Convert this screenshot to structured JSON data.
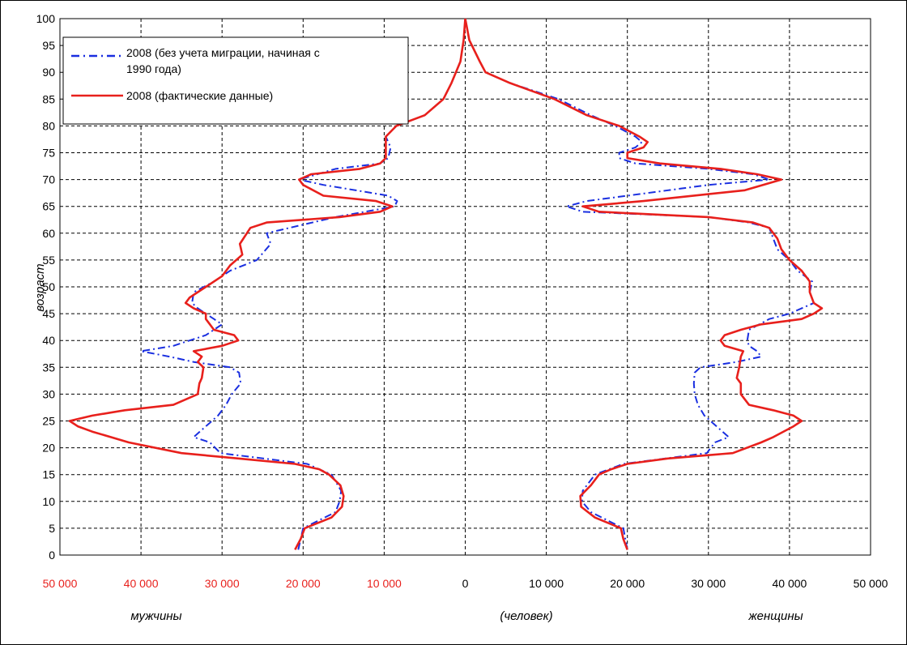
{
  "chart_data": {
    "type": "line",
    "title": "",
    "ylabel": "возраст",
    "xlabel": "(человек)",
    "left_label": "мужчины",
    "right_label": "женщины",
    "xlim": [
      -50000,
      50000
    ],
    "ylim": [
      0,
      100
    ],
    "grid": true,
    "legend_position": "top-left",
    "y_ticks": [
      "0",
      "5",
      "10",
      "15",
      "20",
      "25",
      "30",
      "35",
      "40",
      "45",
      "50",
      "55",
      "60",
      "65",
      "70",
      "75",
      "80",
      "85",
      "90",
      "95",
      "100"
    ],
    "x_ticks": [
      {
        "value": -50000,
        "label": "50 000"
      },
      {
        "value": -40000,
        "label": "40 000"
      },
      {
        "value": -30000,
        "label": "30 000"
      },
      {
        "value": -20000,
        "label": "20 000"
      },
      {
        "value": -10000,
        "label": "10 000"
      },
      {
        "value": 0,
        "label": "0"
      },
      {
        "value": 10000,
        "label": "10 000"
      },
      {
        "value": 20000,
        "label": "20 000"
      },
      {
        "value": 30000,
        "label": "30 000"
      },
      {
        "value": 40000,
        "label": "40 000"
      },
      {
        "value": 50000,
        "label": "50 000"
      }
    ],
    "colors": {
      "negative_ticks": "#e8201c",
      "actual": "#e8201c",
      "projection": "#1a2fe0",
      "grid": "#000000"
    },
    "series": [
      {
        "name": "2008 (без учета миграции, начиная с 1990 года)",
        "style": "dash-dot",
        "color": "#1a2fe0",
        "male": [
          [
            1,
            -20600
          ],
          [
            5,
            -20000
          ],
          [
            8,
            -16000
          ],
          [
            10,
            -15500
          ],
          [
            12,
            -15300
          ],
          [
            15,
            -16500
          ],
          [
            17,
            -19500
          ],
          [
            19,
            -30200
          ],
          [
            21,
            -31500
          ],
          [
            22,
            -33500
          ],
          [
            24,
            -32000
          ],
          [
            26,
            -30500
          ],
          [
            28,
            -29500
          ],
          [
            30,
            -28800
          ],
          [
            32,
            -27700
          ],
          [
            34,
            -27900
          ],
          [
            35,
            -29000
          ],
          [
            36,
            -33500
          ],
          [
            37,
            -36500
          ],
          [
            38,
            -40000
          ],
          [
            39,
            -36000
          ],
          [
            41,
            -32000
          ],
          [
            43,
            -30000
          ],
          [
            44,
            -31000
          ],
          [
            45,
            -32000
          ],
          [
            46,
            -33000
          ],
          [
            47,
            -33700
          ],
          [
            49,
            -33500
          ],
          [
            51,
            -31000
          ],
          [
            53,
            -29000
          ],
          [
            55,
            -25700
          ],
          [
            58,
            -24000
          ],
          [
            60,
            -24500
          ],
          [
            63,
            -16000
          ],
          [
            65,
            -8700
          ],
          [
            66,
            -8400
          ],
          [
            67,
            -9500
          ],
          [
            69,
            -17500
          ],
          [
            70,
            -20500
          ],
          [
            72,
            -16000
          ],
          [
            73,
            -10500
          ],
          [
            74,
            -9500
          ],
          [
            76,
            -9200
          ],
          [
            78,
            -9800
          ],
          [
            80,
            -8500
          ],
          [
            82,
            -5000
          ],
          [
            85,
            -2700
          ],
          [
            88,
            -1700
          ],
          [
            92,
            -600
          ],
          [
            96,
            -200
          ],
          [
            100,
            0
          ]
        ],
        "female": [
          [
            1,
            20000
          ],
          [
            5,
            19500
          ],
          [
            8,
            15500
          ],
          [
            10,
            14400
          ],
          [
            12,
            14500
          ],
          [
            15,
            16000
          ],
          [
            17,
            19500
          ],
          [
            19,
            29800
          ],
          [
            21,
            30800
          ],
          [
            22,
            32500
          ],
          [
            24,
            31000
          ],
          [
            26,
            29500
          ],
          [
            28,
            28700
          ],
          [
            30,
            28300
          ],
          [
            32,
            28200
          ],
          [
            34,
            28300
          ],
          [
            35,
            29000
          ],
          [
            36,
            33500
          ],
          [
            37,
            36500
          ],
          [
            38,
            36000
          ],
          [
            39,
            35000
          ],
          [
            40,
            34800
          ],
          [
            42,
            35000
          ],
          [
            44,
            37500
          ],
          [
            45,
            40000
          ],
          [
            47,
            43000
          ],
          [
            49,
            42500
          ],
          [
            51,
            42800
          ],
          [
            53,
            41000
          ],
          [
            55,
            40000
          ],
          [
            57,
            38500
          ],
          [
            59,
            38000
          ],
          [
            61,
            37500
          ],
          [
            62,
            35000
          ],
          [
            63,
            30000
          ],
          [
            64,
            14500
          ],
          [
            65,
            12500
          ],
          [
            66,
            15000
          ],
          [
            67,
            20000
          ],
          [
            69,
            30000
          ],
          [
            70,
            37500
          ],
          [
            71,
            35500
          ],
          [
            72,
            30000
          ],
          [
            73,
            21000
          ],
          [
            74,
            19000
          ],
          [
            75,
            19000
          ],
          [
            76,
            21000
          ],
          [
            77,
            21800
          ],
          [
            78,
            21000
          ],
          [
            80,
            18500
          ],
          [
            82,
            15500
          ],
          [
            85,
            11500
          ],
          [
            88,
            5500
          ],
          [
            90,
            2500
          ],
          [
            92,
            1800
          ],
          [
            96,
            500
          ],
          [
            100,
            0
          ]
        ]
      },
      {
        "name": "2008 (фактические данные)",
        "style": "solid",
        "color": "#e8201c",
        "male": [
          [
            1,
            -21000
          ],
          [
            3,
            -20300
          ],
          [
            5,
            -19800
          ],
          [
            7,
            -16500
          ],
          [
            9,
            -15200
          ],
          [
            11,
            -15000
          ],
          [
            13,
            -15400
          ],
          [
            15,
            -16800
          ],
          [
            16,
            -18000
          ],
          [
            17,
            -21000
          ],
          [
            18,
            -28000
          ],
          [
            19,
            -35000
          ],
          [
            21,
            -41500
          ],
          [
            23,
            -46000
          ],
          [
            24,
            -47800
          ],
          [
            25,
            -48800
          ],
          [
            26,
            -46000
          ],
          [
            27,
            -42000
          ],
          [
            28,
            -36000
          ],
          [
            30,
            -33000
          ],
          [
            32,
            -32800
          ],
          [
            33,
            -32500
          ],
          [
            35,
            -32300
          ],
          [
            36,
            -33000
          ],
          [
            37,
            -32500
          ],
          [
            38,
            -33500
          ],
          [
            39,
            -30000
          ],
          [
            40,
            -28000
          ],
          [
            41,
            -28500
          ],
          [
            42,
            -31000
          ],
          [
            44,
            -32000
          ],
          [
            45,
            -32000
          ],
          [
            46,
            -33500
          ],
          [
            47,
            -34500
          ],
          [
            48,
            -34000
          ],
          [
            50,
            -32000
          ],
          [
            52,
            -30000
          ],
          [
            54,
            -29000
          ],
          [
            56,
            -27500
          ],
          [
            58,
            -27800
          ],
          [
            61,
            -26500
          ],
          [
            62,
            -24500
          ],
          [
            63,
            -15500
          ],
          [
            64,
            -10500
          ],
          [
            65,
            -9000
          ],
          [
            66,
            -11000
          ],
          [
            67,
            -17500
          ],
          [
            69,
            -20000
          ],
          [
            70,
            -20500
          ],
          [
            71,
            -19000
          ],
          [
            72,
            -13000
          ],
          [
            73,
            -10500
          ],
          [
            74,
            -9800
          ],
          [
            76,
            -9800
          ],
          [
            78,
            -9800
          ],
          [
            80,
            -8500
          ],
          [
            82,
            -5000
          ],
          [
            85,
            -2700
          ],
          [
            88,
            -1700
          ],
          [
            92,
            -600
          ],
          [
            96,
            -200
          ],
          [
            100,
            0
          ]
        ],
        "female": [
          [
            1,
            20000
          ],
          [
            3,
            19500
          ],
          [
            5,
            19200
          ],
          [
            7,
            16000
          ],
          [
            9,
            14300
          ],
          [
            11,
            14200
          ],
          [
            13,
            15500
          ],
          [
            15,
            16500
          ],
          [
            16,
            18000
          ],
          [
            17,
            20000
          ],
          [
            18,
            25000
          ],
          [
            19,
            33000
          ],
          [
            21,
            36500
          ],
          [
            22,
            38000
          ],
          [
            24,
            40500
          ],
          [
            25,
            41500
          ],
          [
            26,
            40500
          ],
          [
            27,
            38000
          ],
          [
            28,
            35000
          ],
          [
            30,
            34000
          ],
          [
            32,
            34000
          ],
          [
            33,
            33500
          ],
          [
            35,
            33800
          ],
          [
            37,
            34000
          ],
          [
            38,
            34300
          ],
          [
            39,
            32000
          ],
          [
            40,
            31500
          ],
          [
            41,
            32000
          ],
          [
            42,
            34000
          ],
          [
            43,
            36500
          ],
          [
            44,
            41500
          ],
          [
            45,
            43000
          ],
          [
            46,
            44000
          ],
          [
            47,
            43000
          ],
          [
            49,
            42500
          ],
          [
            51,
            42500
          ],
          [
            53,
            41500
          ],
          [
            55,
            40000
          ],
          [
            57,
            39000
          ],
          [
            59,
            38500
          ],
          [
            61,
            37500
          ],
          [
            62,
            35500
          ],
          [
            63,
            30000
          ],
          [
            64,
            16500
          ],
          [
            65,
            14500
          ],
          [
            66,
            22000
          ],
          [
            68,
            34500
          ],
          [
            70,
            39000
          ],
          [
            71,
            36000
          ],
          [
            72,
            31500
          ],
          [
            73,
            24000
          ],
          [
            74,
            20000
          ],
          [
            75,
            20000
          ],
          [
            76,
            22000
          ],
          [
            77,
            22500
          ],
          [
            78,
            21500
          ],
          [
            80,
            19000
          ],
          [
            82,
            15000
          ],
          [
            85,
            11000
          ],
          [
            88,
            5500
          ],
          [
            90,
            2500
          ],
          [
            92,
            1800
          ],
          [
            96,
            500
          ],
          [
            100,
            0
          ]
        ]
      }
    ]
  }
}
